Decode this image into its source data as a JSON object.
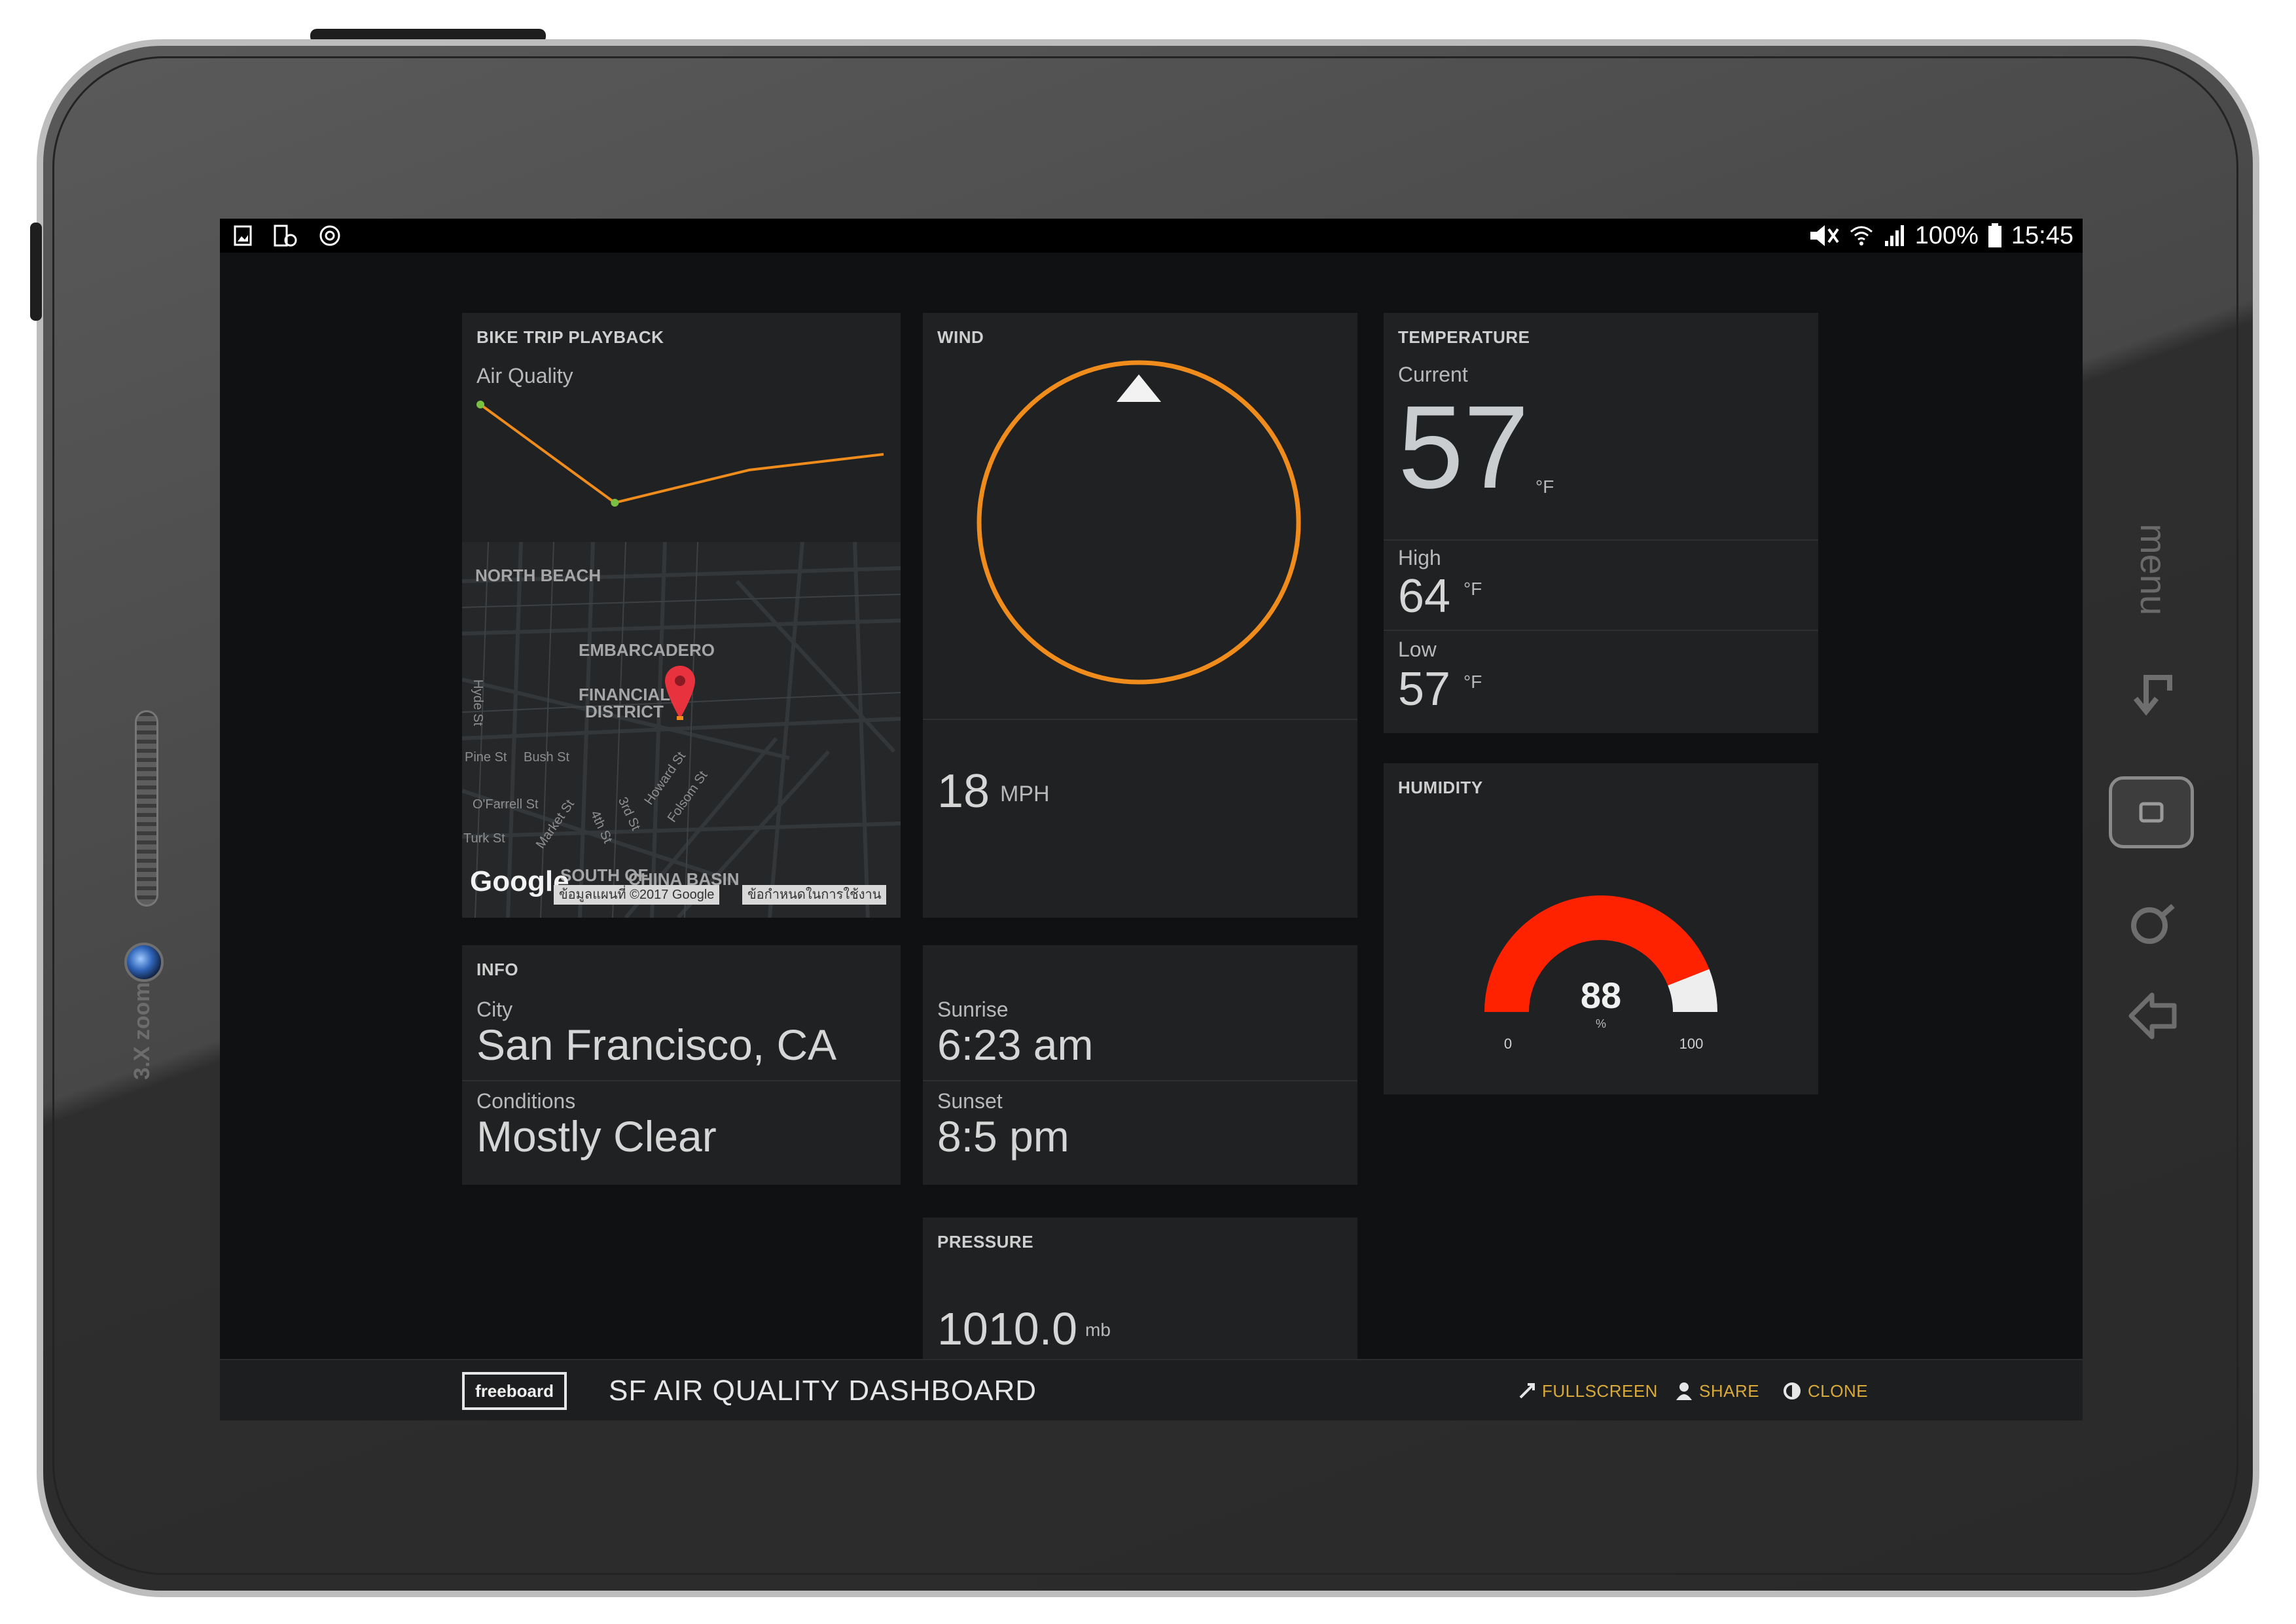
{
  "device": {
    "side_label": "3.X zoom",
    "menu_label": "menu"
  },
  "statusbar": {
    "battery": "100%",
    "time": "15:45"
  },
  "panels": {
    "bike": {
      "title": "BIKE TRIP PLAYBACK",
      "series_label": "Air Quality",
      "chart_data": {
        "type": "line",
        "x": [
          1,
          2,
          3,
          4
        ],
        "values": [
          100,
          25,
          50,
          62
        ],
        "ylim": [
          0,
          110
        ]
      },
      "map": {
        "areas": [
          "NORTH BEACH",
          "EMBARCADERO",
          "FINANCIAL",
          "DISTRICT",
          "SOUTH OF",
          "CHINA BASIN"
        ],
        "streets": [
          "Hyde St",
          "Pine St",
          "Bush St",
          "O'Farrell St",
          "Turk St",
          "Market St",
          "4th St",
          "3rd St",
          "Howard St",
          "Folsom St"
        ],
        "logo": "Google",
        "copyright": "ข้อมูลแผนที่ ©2017 Google",
        "terms": "ข้อกำหนดในการใช้งาน"
      }
    },
    "wind": {
      "title": "WIND",
      "speed": "18",
      "speed_unit": "MPH"
    },
    "temperature": {
      "title": "TEMPERATURE",
      "current_label": "Current",
      "current_value": "57",
      "current_unit": "°F",
      "high_label": "High",
      "high_value": "64",
      "high_unit": "°F",
      "low_label": "Low",
      "low_value": "57",
      "low_unit": "°F"
    },
    "humidity": {
      "title": "HUMIDITY",
      "value": "88",
      "unit": "%",
      "min_label": "0",
      "max_label": "100",
      "level": 88
    },
    "info": {
      "title": "INFO",
      "city_label": "City",
      "city_value": "San Francisco, CA",
      "conditions_label": "Conditions",
      "conditions_value": "Mostly Clear"
    },
    "sun": {
      "sunrise_label": "Sunrise",
      "sunrise_value": "6:23 am",
      "sunset_label": "Sunset",
      "sunset_value": "8:5 pm"
    },
    "pressure": {
      "title": "PRESSURE",
      "value": "1010.0",
      "unit": "mb"
    }
  },
  "footer": {
    "logo": "freeboard",
    "title": "SF AIR QUALITY DASHBOARD",
    "fullscreen": "FULLSCREEN",
    "share": "SHARE",
    "clone": "CLONE"
  },
  "colors": {
    "accent_orange": "#f08c1c",
    "gauge_red": "#ff2200",
    "link_gold": "#d9a93a",
    "map_pin": "#e8333f"
  }
}
